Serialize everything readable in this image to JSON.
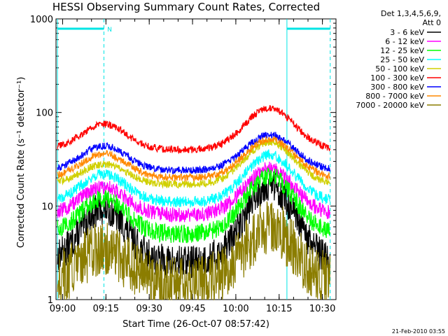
{
  "chart_data": {
    "type": "line",
    "title": "HESSI Observing Summary Count Rates, Corrected",
    "xlabel": "Start Time (26-Oct-07 08:57:42)",
    "ylabel": "Corrected Count Rate (s⁻¹ detector⁻¹)",
    "footer": "21-Feb-2010 03:55",
    "y_scale": "log",
    "ylim": [
      1,
      1000
    ],
    "y_ticks": [
      "1",
      "10",
      "100",
      "1000"
    ],
    "xlim_minutes": [
      0,
      97
    ],
    "x_ticks": [
      {
        "label": "09:00",
        "t": 2.3
      },
      {
        "label": "09:15",
        "t": 17.3
      },
      {
        "label": "09:30",
        "t": 32.3
      },
      {
        "label": "09:45",
        "t": 47.3
      },
      {
        "label": "10:00",
        "t": 62.3
      },
      {
        "label": "10:15",
        "t": 77.3
      },
      {
        "label": "10:30",
        "t": 92.3
      }
    ],
    "legend_header": [
      "Det 1,3,4,5,6,9,",
      "Att 0"
    ],
    "legend_placement": "right",
    "flags": {
      "night_segments": [
        [
          0.5,
          16.6
        ],
        [
          80.0,
          95.0
        ]
      ],
      "label": "N",
      "label_t": 16.8,
      "color": "#00e5e5"
    },
    "vertical_markers": [
      {
        "t": 0.5,
        "style": "solid"
      },
      {
        "t": 16.6,
        "style": "dashed"
      },
      {
        "t": 80.0,
        "style": "solid"
      },
      {
        "t": 95.0,
        "style": "dashed"
      }
    ],
    "time_range": [
      0.5,
      95.0
    ],
    "series": [
      {
        "name": "3 - 6 keV",
        "color": "#000000",
        "base": 2.5,
        "peak1": 9.5,
        "peak2": 17,
        "noise": 0.18
      },
      {
        "name": "6 - 12 keV",
        "color": "#ff00ff",
        "base": 8,
        "peak1": 16,
        "peak2": 25,
        "noise": 0.08
      },
      {
        "name": "12 - 25 keV",
        "color": "#00ff00",
        "base": 5,
        "peak1": 12,
        "peak2": 21,
        "noise": 0.1
      },
      {
        "name": "25 - 50 keV",
        "color": "#00ffff",
        "base": 11,
        "peak1": 22,
        "peak2": 35,
        "noise": 0.06
      },
      {
        "name": "50 - 100 keV",
        "color": "#d0d000",
        "base": 17,
        "peak1": 28,
        "peak2": 48,
        "noise": 0.04
      },
      {
        "name": "100 - 300 keV",
        "color": "#ff0000",
        "base": 40,
        "peak1": 75,
        "peak2": 112,
        "noise": 0.04
      },
      {
        "name": "300 - 800 keV",
        "color": "#0000ff",
        "base": 24,
        "peak1": 44,
        "peak2": 58,
        "noise": 0.04
      },
      {
        "name": "800 - 7000 keV",
        "color": "#ff8800",
        "base": 20,
        "peak1": 36,
        "peak2": 52,
        "noise": 0.04
      },
      {
        "name": "7000 - 20000 keV",
        "color": "#8b7d00",
        "base": 1.5,
        "peak1": 3.5,
        "peak2": 6,
        "noise": 0.3
      }
    ]
  }
}
